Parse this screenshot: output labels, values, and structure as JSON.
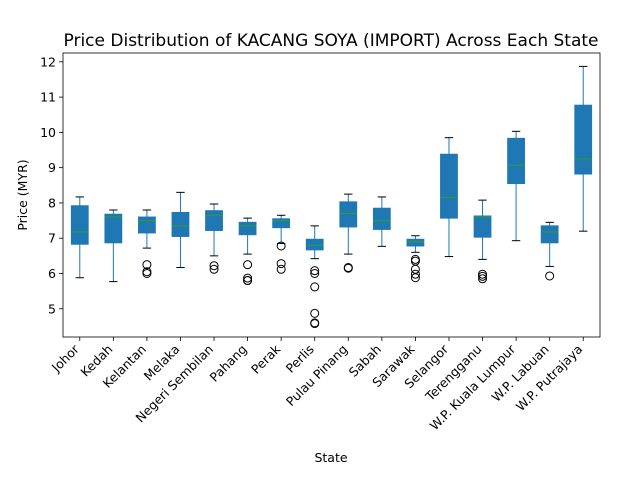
{
  "chart_data": {
    "type": "box",
    "title": "Price Distribution of KACANG SOYA (IMPORT) Across Each State",
    "xlabel": "State",
    "ylabel": "Price (MYR)",
    "ylim": [
      4.2,
      12.25
    ],
    "yticks": [
      5,
      6,
      7,
      8,
      9,
      10,
      11,
      12
    ],
    "grid": false,
    "colors": {
      "box": "#1f77b4",
      "median": "#2ca02c",
      "whisker": "#1f77b4",
      "flier": "#000000"
    },
    "categories": [
      "Johor",
      "Kedah",
      "Kelantan",
      "Melaka",
      "Negeri Sembilan",
      "Pahang",
      "Perak",
      "Perlis",
      "Pulau Pinang",
      "Sabah",
      "Sarawak",
      "Selangor",
      "Terengganu",
      "W.P. Kuala Lumpur",
      "W.P. Labuan",
      "W.P. Putrajaya"
    ],
    "boxes": [
      {
        "whislo": 5.88,
        "q1": 6.83,
        "med": 7.18,
        "q3": 7.92,
        "whishi": 8.17,
        "fliers": []
      },
      {
        "whislo": 5.77,
        "q1": 6.87,
        "med": 7.6,
        "q3": 7.68,
        "whishi": 7.8,
        "fliers": []
      },
      {
        "whislo": 6.72,
        "q1": 7.15,
        "med": 7.5,
        "q3": 7.6,
        "whishi": 7.8,
        "fliers": [
          6.25,
          6.05,
          6.0
        ]
      },
      {
        "whislo": 6.17,
        "q1": 7.05,
        "med": 7.35,
        "q3": 7.73,
        "whishi": 8.3,
        "fliers": []
      },
      {
        "whislo": 6.5,
        "q1": 7.22,
        "med": 7.65,
        "q3": 7.78,
        "whishi": 7.97,
        "fliers": [
          6.22,
          6.12
        ]
      },
      {
        "whislo": 6.55,
        "q1": 7.1,
        "med": 7.35,
        "q3": 7.45,
        "whishi": 7.57,
        "fliers": [
          6.25,
          5.87,
          5.8,
          5.8
        ]
      },
      {
        "whislo": 6.85,
        "q1": 7.3,
        "med": 7.5,
        "q3": 7.55,
        "whishi": 7.65,
        "fliers": [
          6.78,
          6.28,
          6.12
        ]
      },
      {
        "whislo": 6.42,
        "q1": 6.67,
        "med": 6.8,
        "q3": 6.97,
        "whishi": 7.35,
        "fliers": [
          6.08,
          6.0,
          5.62,
          4.87,
          4.6,
          4.58
        ]
      },
      {
        "whislo": 6.55,
        "q1": 7.32,
        "med": 7.7,
        "q3": 8.03,
        "whishi": 8.25,
        "fliers": [
          6.17,
          6.15
        ]
      },
      {
        "whislo": 6.77,
        "q1": 7.25,
        "med": 7.5,
        "q3": 7.85,
        "whishi": 8.17,
        "fliers": []
      },
      {
        "whislo": 6.6,
        "q1": 6.78,
        "med": 6.9,
        "q3": 6.97,
        "whishi": 7.07,
        "fliers": [
          6.4,
          6.35,
          6.12,
          5.98,
          5.88
        ]
      },
      {
        "whislo": 6.48,
        "q1": 7.57,
        "med": 8.15,
        "q3": 9.38,
        "whishi": 9.85,
        "fliers": []
      },
      {
        "whislo": 6.4,
        "q1": 7.03,
        "med": 7.6,
        "q3": 7.63,
        "whishi": 8.08,
        "fliers": [
          5.98,
          5.92,
          5.85
        ]
      },
      {
        "whislo": 6.93,
        "q1": 8.55,
        "med": 9.07,
        "q3": 9.83,
        "whishi": 10.03,
        "fliers": []
      },
      {
        "whislo": 6.2,
        "q1": 6.87,
        "med": 7.18,
        "q3": 7.35,
        "whishi": 7.45,
        "fliers": [
          5.93
        ]
      },
      {
        "whislo": 7.2,
        "q1": 8.82,
        "med": 9.25,
        "q3": 10.77,
        "whishi": 11.87,
        "fliers": []
      }
    ]
  }
}
